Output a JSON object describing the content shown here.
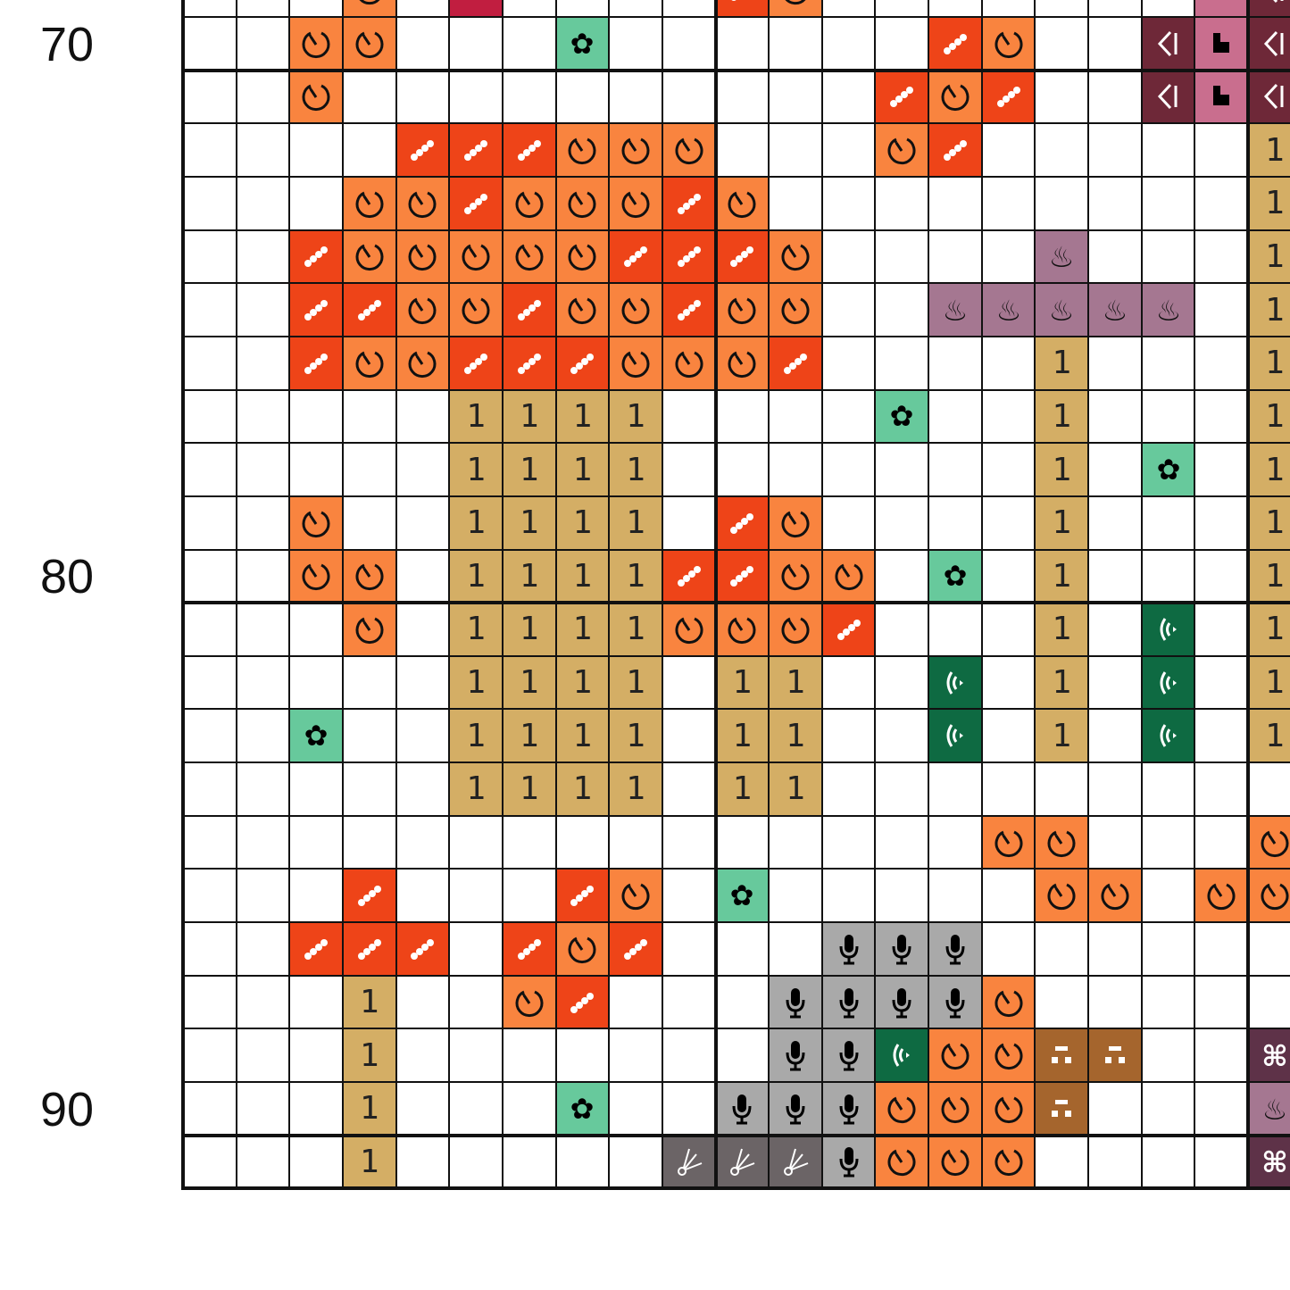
{
  "row_labels": [
    {
      "row": 70,
      "text": "70"
    },
    {
      "row": 80,
      "text": "80"
    },
    {
      "row": 90,
      "text": "90"
    }
  ],
  "first_row": 69,
  "symbols": {
    "O": {
      "color": "#F9843F",
      "icon": "timer-icon"
    },
    "R": {
      "color": "#EE4418",
      "icon": "dots-icon"
    },
    "T": {
      "color": "#D4AE65",
      "icon": "one-icon",
      "glyph": "1"
    },
    "G": {
      "color": "#67C99C",
      "icon": "flower-icon"
    },
    "D": {
      "color": "#0E6A42",
      "icon": "signal-icon"
    },
    "P": {
      "color": "#A57791",
      "icon": "hot-spring-icon"
    },
    "M": {
      "color": "#A9A9A9",
      "icon": "microphone-icon"
    },
    "K": {
      "color": "#6B6466",
      "icon": "broom-icon"
    },
    "B": {
      "color": "#A5652D",
      "icon": "blocks-icon"
    },
    "W": {
      "color": "#6E2838",
      "icon": "speaker-icon"
    },
    "N": {
      "color": "#C96E8E",
      "icon": "l-block-icon"
    },
    "X": {
      "color": "#5E3248",
      "icon": "command-icon"
    },
    "C": {
      "color": "#C11E40",
      "icon": "bars-icon"
    }
  },
  "rows": [
    "...O.C....RO.......NW",
    "..OO...G......RO..WNW",
    "..O..........ROR..WNW",
    "....RRROOO...OR.....T",
    "...OOROOORO.........T",
    "..ROOOOORRRO....P...T",
    "..RROOROOROO..PPPPP.T",
    "..ROORRROOOR....T...T",
    ".....TTTT....G..T...T",
    ".....TTTT.......T.G.T",
    "..O..TTTT.RO....T...T",
    "..OO.TTTTRROO.G.T...T",
    "...O.TTTTOOOR...T.D.T",
    ".....TTTT.TT..D.T.D.T",
    "..G..TTTT.TT..D.T.D.T",
    ".....TTTT.TT.........",
    "...............OO...O",
    "...R...RO.G.....OO.OO",
    "..RRR.ROR...MMM......",
    "...T..OR...MMMMO.....",
    "...T.......MMDOOBB..X",
    "...T...G..MMMOOOB...P",
    "...T.....KKKMOOO....X"
  ]
}
